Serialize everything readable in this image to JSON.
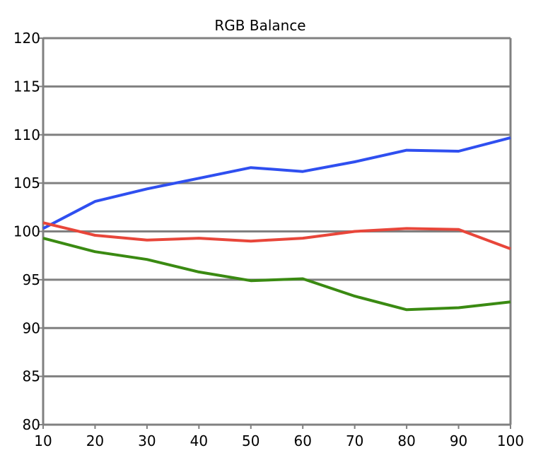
{
  "chart_data": {
    "type": "line",
    "title": "RGB Balance",
    "xlabel": "",
    "ylabel": "",
    "x": [
      10,
      20,
      30,
      40,
      50,
      60,
      70,
      80,
      90,
      100
    ],
    "xlim": [
      10,
      100
    ],
    "ylim": [
      80,
      120
    ],
    "x_ticks": [
      "10",
      "20",
      "30",
      "40",
      "50",
      "60",
      "70",
      "80",
      "90",
      "100"
    ],
    "y_ticks": [
      "80",
      "85",
      "90",
      "95",
      "100",
      "105",
      "110",
      "115",
      "120"
    ],
    "grid": "horizontal",
    "series": [
      {
        "color": "#2f4ff0",
        "values": [
          100.3,
          103.1,
          104.4,
          105.5,
          106.6,
          106.2,
          107.2,
          108.4,
          108.3,
          109.7
        ]
      },
      {
        "color": "#e8463a",
        "values": [
          100.9,
          99.6,
          99.1,
          99.3,
          99.0,
          99.3,
          100.0,
          100.3,
          100.2,
          98.2
        ]
      },
      {
        "color": "#3a8a12",
        "values": [
          99.3,
          97.9,
          97.1,
          95.8,
          94.9,
          95.1,
          93.3,
          91.9,
          92.1,
          92.7
        ]
      }
    ]
  }
}
